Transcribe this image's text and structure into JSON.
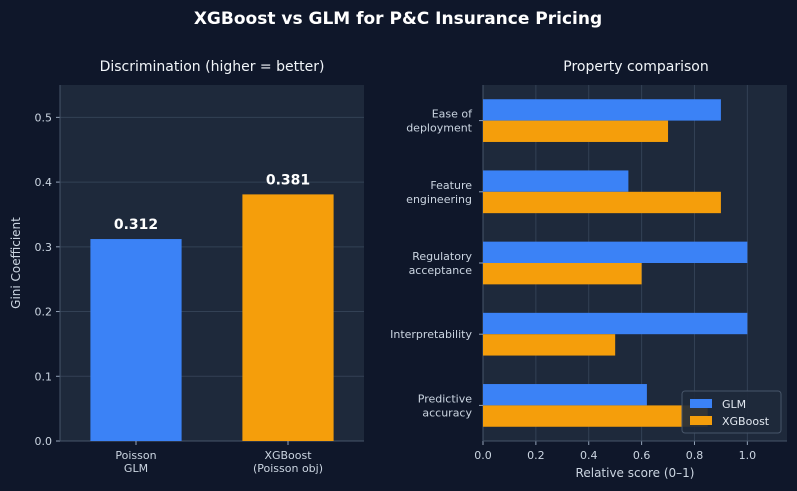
{
  "figure": {
    "title": "XGBoost vs GLM for P&C Insurance Pricing",
    "background": "#0f172a",
    "panel_background": "#1e293b"
  },
  "chart_data": [
    {
      "type": "bar",
      "title": "Discrimination (higher = better)",
      "categories": [
        [
          "Poisson",
          "GLM"
        ],
        [
          "XGBoost",
          "(Poisson obj)"
        ]
      ],
      "values": [
        0.312,
        0.381
      ],
      "value_labels": [
        "0.312",
        "0.381"
      ],
      "colors": [
        "#3b82f6",
        "#f59e0b"
      ],
      "xlabel": "",
      "ylabel": "Gini Coefficient",
      "ylim": [
        0,
        0.55
      ],
      "yticks": [
        0.0,
        0.1,
        0.2,
        0.3,
        0.4,
        0.5
      ],
      "ytick_labels": [
        "0.0",
        "0.1",
        "0.2",
        "0.3",
        "0.4",
        "0.5"
      ],
      "grid": "y"
    },
    {
      "type": "bar",
      "orientation": "horizontal",
      "title": "Property comparison",
      "categories": [
        [
          "Ease of",
          "deployment"
        ],
        [
          "Feature",
          "engineering"
        ],
        [
          "Regulatory",
          "acceptance"
        ],
        [
          "Interpretability"
        ],
        [
          "Predictive",
          "accuracy"
        ]
      ],
      "series": [
        {
          "name": "GLM",
          "color": "#3b82f6",
          "values": [
            0.9,
            0.55,
            1.0,
            1.0,
            0.62
          ]
        },
        {
          "name": "XGBoost",
          "color": "#f59e0b",
          "values": [
            0.7,
            0.9,
            0.6,
            0.5,
            0.85
          ]
        }
      ],
      "xlabel": "Relative score (0–1)",
      "ylabel": "",
      "xlim": [
        0,
        1.15
      ],
      "xticks": [
        0.0,
        0.2,
        0.4,
        0.6,
        0.8,
        1.0
      ],
      "xtick_labels": [
        "0.0",
        "0.2",
        "0.4",
        "0.6",
        "0.8",
        "1.0"
      ],
      "grid": "x",
      "legend": "lower-right"
    }
  ]
}
